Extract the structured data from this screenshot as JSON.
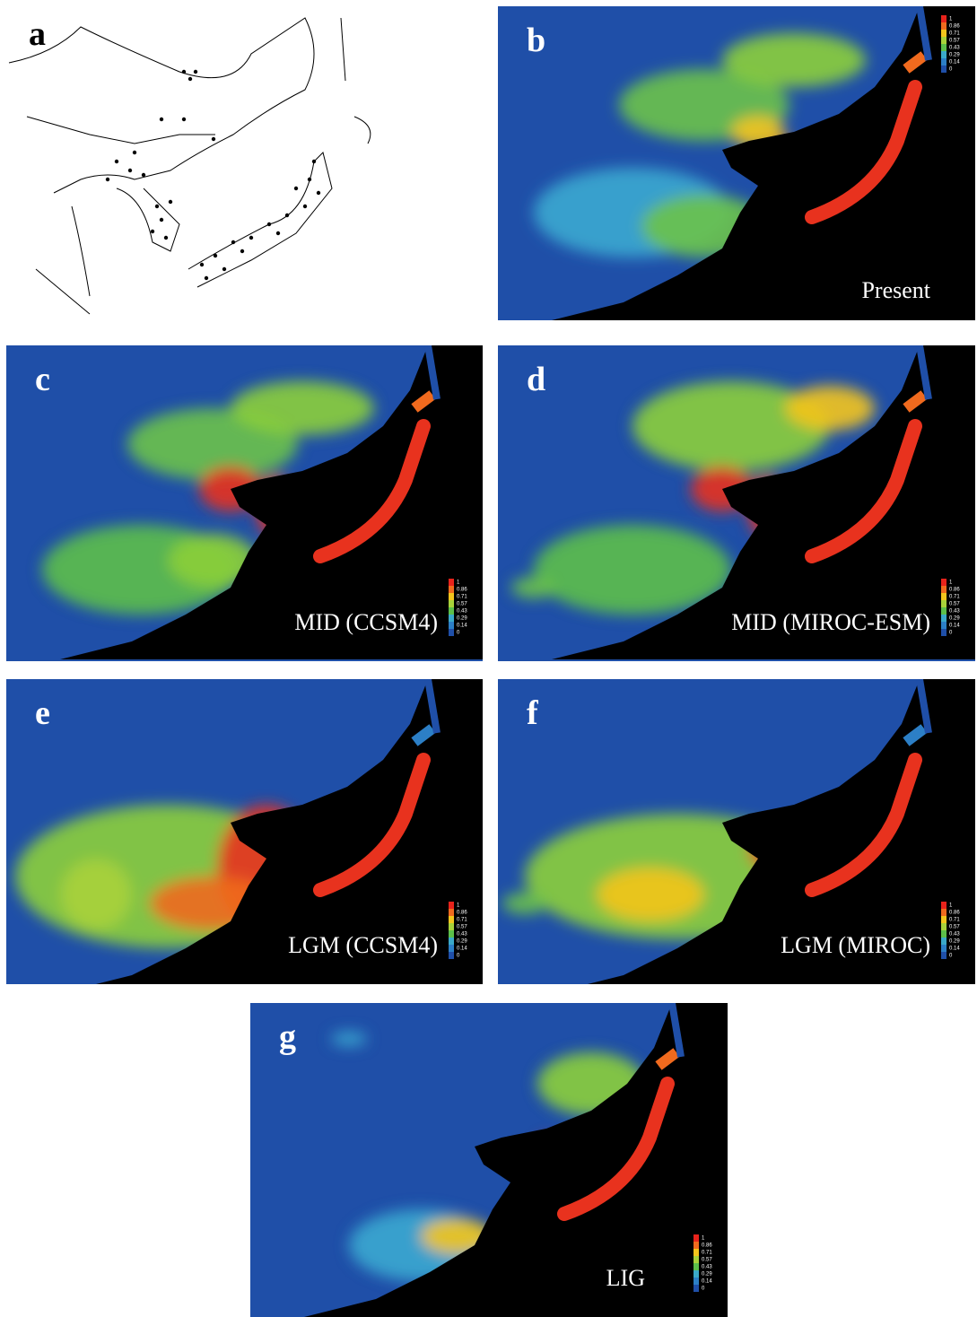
{
  "panels": [
    {
      "letter": "a"
    },
    {
      "letter": "b",
      "label": "Present"
    },
    {
      "letter": "c",
      "label": "MID (CCSM4)"
    },
    {
      "letter": "d",
      "label": "MID (MIROC-ESM)"
    },
    {
      "letter": "e",
      "label": "LGM (CCSM4)"
    },
    {
      "letter": "f",
      "label": "LGM (MIROC)"
    },
    {
      "letter": "g",
      "label": "LIG"
    }
  ],
  "legend": {
    "ticks": [
      "1",
      "0.86",
      "0.71",
      "0.57",
      "0.43",
      "0.29",
      "0.14",
      "0"
    ],
    "colors": [
      "#e8231b",
      "#f06a1e",
      "#f4c51c",
      "#a8d23a",
      "#5cbf4a",
      "#3aa9c9",
      "#2c7fc6",
      "#1f4fa8"
    ]
  }
}
